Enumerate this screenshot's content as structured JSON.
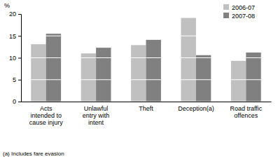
{
  "chart_data": {
    "type": "bar",
    "y_label": "%",
    "categories": [
      "Acts intended to cause injury",
      "Unlawful entry with intent",
      "Theft",
      "Deception(a)",
      "Road traffic offences"
    ],
    "series": [
      {
        "name": "2006-07",
        "color": "#c0c0c0",
        "values": [
          13.1,
          11.0,
          12.9,
          19.1,
          9.3
        ]
      },
      {
        "name": "2007-08",
        "color": "#808080",
        "values": [
          15.5,
          12.3,
          14.1,
          10.6,
          11.2
        ]
      }
    ],
    "ylim": [
      0,
      20
    ],
    "yticks": [
      0,
      5,
      10,
      15,
      20
    ],
    "grid": true,
    "legend": "top-right",
    "annotations": [
      "(a) Includes fare evasion"
    ]
  }
}
